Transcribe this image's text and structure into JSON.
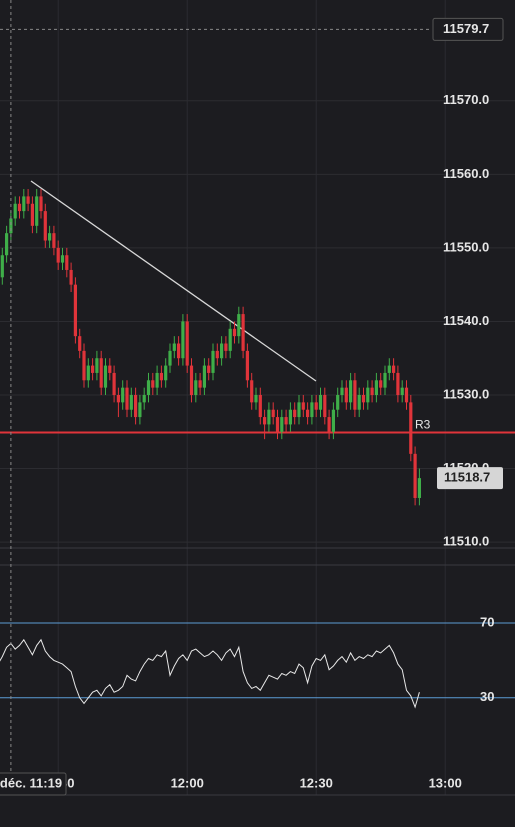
{
  "chart_data": [
    {
      "type": "candlestick",
      "x": [
        "11:16",
        "11:17",
        "11:18",
        "11:19",
        "11:20",
        "11:21",
        "11:22",
        "11:23",
        "11:24",
        "11:25",
        "11:26",
        "11:27",
        "11:28",
        "11:29",
        "11:30",
        "11:31",
        "11:32",
        "11:33",
        "11:34",
        "11:35",
        "11:36",
        "11:37",
        "11:38",
        "11:39",
        "11:40",
        "11:41",
        "11:42",
        "11:43",
        "11:44",
        "11:45",
        "11:46",
        "11:47",
        "11:48",
        "11:49",
        "11:50",
        "11:51",
        "11:52",
        "11:53",
        "11:54",
        "11:55",
        "11:56",
        "11:57",
        "11:58",
        "11:59",
        "12:00",
        "12:01",
        "12:02",
        "12:03",
        "12:04",
        "12:05",
        "12:06",
        "12:07",
        "12:08",
        "12:09",
        "12:10",
        "12:11",
        "12:12",
        "12:13",
        "12:14",
        "12:15",
        "12:16",
        "12:17",
        "12:18",
        "12:19",
        "12:20",
        "12:21",
        "12:22",
        "12:23",
        "12:24",
        "12:25",
        "12:26",
        "12:27",
        "12:28",
        "12:29",
        "12:30",
        "12:31",
        "12:32",
        "12:33",
        "12:34",
        "12:35",
        "12:36",
        "12:37",
        "12:38",
        "12:39",
        "12:40",
        "12:41",
        "12:42",
        "12:43",
        "12:44",
        "12:45",
        "12:46",
        "12:47",
        "12:48",
        "12:49",
        "12:50",
        "12:51",
        "12:52",
        "12:53",
        "12:54"
      ],
      "ohlc": [
        [
          11542,
          11547,
          11541,
          11546
        ],
        [
          11546,
          11550,
          11545,
          11549
        ],
        [
          11549,
          11553,
          11548,
          11552
        ],
        [
          11552,
          11555,
          11551,
          11554
        ],
        [
          11554,
          11557,
          11553,
          11556
        ],
        [
          11556,
          11557,
          11554,
          11555
        ],
        [
          11555,
          11558,
          11554,
          11557
        ],
        [
          11557,
          11558,
          11555,
          11556
        ],
        [
          11556,
          11557,
          11552,
          11553
        ],
        [
          11553,
          11558,
          11552,
          11557
        ],
        [
          11557,
          11558,
          11554,
          11555
        ],
        [
          11555,
          11556,
          11550,
          11551
        ],
        [
          11551,
          11553,
          11550,
          11552
        ],
        [
          11552,
          11553,
          11549,
          11550
        ],
        [
          11550,
          11551,
          11547,
          11548
        ],
        [
          11548,
          11550,
          11547,
          11549
        ],
        [
          11549,
          11550,
          11546,
          11547
        ],
        [
          11547,
          11548,
          11544,
          11545
        ],
        [
          11545,
          11546,
          11537,
          11538
        ],
        [
          11538,
          11539,
          11535,
          11536
        ],
        [
          11536,
          11537,
          11531,
          11532
        ],
        [
          11532,
          11535,
          11531,
          11534
        ],
        [
          11534,
          11535,
          11532,
          11533
        ],
        [
          11533,
          11536,
          11532,
          11535
        ],
        [
          11535,
          11536,
          11530,
          11531
        ],
        [
          11531,
          11535,
          11530,
          11534
        ],
        [
          11534,
          11535,
          11532,
          11533
        ],
        [
          11533,
          11534,
          11529,
          11530
        ],
        [
          11530,
          11531,
          11527,
          11529
        ],
        [
          11529,
          11532,
          11528,
          11531
        ],
        [
          11531,
          11532,
          11527,
          11528
        ],
        [
          11528,
          11531,
          11527,
          11530
        ],
        [
          11530,
          11531,
          11526,
          11527
        ],
        [
          11527,
          11530,
          11526,
          11529
        ],
        [
          11529,
          11531,
          11528,
          11530
        ],
        [
          11530,
          11533,
          11529,
          11532
        ],
        [
          11532,
          11533,
          11530,
          11531
        ],
        [
          11531,
          11534,
          11530,
          11533
        ],
        [
          11533,
          11534,
          11531,
          11532
        ],
        [
          11532,
          11535,
          11531,
          11534
        ],
        [
          11534,
          11537,
          11533,
          11536
        ],
        [
          11536,
          11538,
          11535,
          11537
        ],
        [
          11537,
          11538,
          11534,
          11535
        ],
        [
          11535,
          11541,
          11534,
          11540
        ],
        [
          11540,
          11541,
          11533,
          11534
        ],
        [
          11534,
          11535,
          11529,
          11530
        ],
        [
          11530,
          11533,
          11529,
          11532
        ],
        [
          11532,
          11533,
          11530,
          11531
        ],
        [
          11531,
          11535,
          11530,
          11534
        ],
        [
          11534,
          11535,
          11532,
          11533
        ],
        [
          11533,
          11537,
          11532,
          11536
        ],
        [
          11536,
          11537,
          11534,
          11535
        ],
        [
          11535,
          11538,
          11534,
          11537
        ],
        [
          11537,
          11538,
          11535,
          11536
        ],
        [
          11536,
          11540,
          11535,
          11539
        ],
        [
          11539,
          11540,
          11537,
          11538
        ],
        [
          11538,
          11542,
          11537,
          11541
        ],
        [
          11541,
          11542,
          11535,
          11536
        ],
        [
          11536,
          11537,
          11531,
          11532
        ],
        [
          11532,
          11533,
          11528,
          11529
        ],
        [
          11529,
          11531,
          11528,
          11530
        ],
        [
          11530,
          11531,
          11526,
          11527
        ],
        [
          11527,
          11528,
          11524,
          11526
        ],
        [
          11526,
          11529,
          11525,
          11528
        ],
        [
          11528,
          11529,
          11526,
          11527
        ],
        [
          11527,
          11528,
          11524,
          11525
        ],
        [
          11525,
          11528,
          11524,
          11527
        ],
        [
          11527,
          11528,
          11525,
          11526
        ],
        [
          11526,
          11529,
          11525,
          11528
        ],
        [
          11528,
          11529,
          11526,
          11527
        ],
        [
          11527,
          11530,
          11526,
          11529
        ],
        [
          11529,
          11530,
          11527,
          11528
        ],
        [
          11528,
          11529,
          11526,
          11527
        ],
        [
          11527,
          11530,
          11526,
          11529
        ],
        [
          11529,
          11530,
          11527,
          11528
        ],
        [
          11528,
          11531,
          11527,
          11530
        ],
        [
          11530,
          11531,
          11526,
          11527
        ],
        [
          11527,
          11528,
          11524,
          11525
        ],
        [
          11525,
          11529,
          11524,
          11528
        ],
        [
          11528,
          11531,
          11527,
          11530
        ],
        [
          11530,
          11532,
          11529,
          11531
        ],
        [
          11531,
          11532,
          11528,
          11529
        ],
        [
          11529,
          11533,
          11528,
          11532
        ],
        [
          11532,
          11533,
          11527,
          11528
        ],
        [
          11528,
          11531,
          11527,
          11530
        ],
        [
          11530,
          11531,
          11528,
          11529
        ],
        [
          11529,
          11532,
          11528,
          11531
        ],
        [
          11531,
          11532,
          11529,
          11530
        ],
        [
          11530,
          11533,
          11529,
          11532
        ],
        [
          11532,
          11533,
          11530,
          11531
        ],
        [
          11531,
          11534,
          11530,
          11533
        ],
        [
          11533,
          11535,
          11532,
          11534
        ],
        [
          11534,
          11535,
          11532,
          11533
        ],
        [
          11533,
          11534,
          11529,
          11530
        ],
        [
          11530,
          11532,
          11529,
          11531
        ],
        [
          11531,
          11532,
          11528,
          11529
        ],
        [
          11529,
          11530,
          11521,
          11522
        ],
        [
          11522,
          11523,
          11515,
          11516
        ],
        [
          11516,
          11520,
          11515,
          11518.7
        ]
      ],
      "up_color": "#3fae49",
      "down_color": "#e0343a",
      "xlim": [
        "11:16",
        "13:16"
      ],
      "xticks": [
        "11:30",
        "12:00",
        "12:30",
        "13:00"
      ],
      "ylim": [
        11509.2,
        11583.7
      ],
      "yticks": [
        11510.0,
        11520.0,
        11530.0,
        11540.0,
        11550.0,
        11560.0,
        11570.0
      ],
      "levels": [
        {
          "label": "R3",
          "value": 11524.9,
          "color": "#e0343a"
        }
      ],
      "crosshair": {
        "x_label": "déc. 11:19",
        "y_label": "11579.7"
      }
    },
    {
      "type": "line",
      "values": [
        48,
        52,
        57,
        59,
        56,
        58,
        61,
        57,
        53,
        58,
        61,
        55,
        52,
        50,
        49,
        48,
        46,
        44,
        36,
        30,
        27,
        30,
        33,
        34,
        31,
        35,
        37,
        33,
        34,
        36,
        42,
        40,
        39,
        44,
        48,
        51,
        50,
        53,
        52,
        55,
        42,
        47,
        51,
        53,
        50,
        55,
        56,
        54,
        52,
        53,
        55,
        53,
        50,
        54,
        56,
        52,
        57,
        44,
        38,
        35,
        36,
        34,
        38,
        42,
        41,
        40,
        43,
        42,
        44,
        43,
        48,
        46,
        38,
        47,
        51,
        50,
        53,
        45,
        47,
        50,
        52,
        49,
        54,
        50,
        52,
        51,
        53,
        52,
        55,
        54,
        56,
        58,
        54,
        48,
        45,
        34,
        31,
        25,
        33
      ],
      "color": "#e8e8e8",
      "level_color": "#5b9bd5",
      "ylim": [
        -22,
        101
      ],
      "yticks": [
        30,
        70
      ]
    }
  ]
}
